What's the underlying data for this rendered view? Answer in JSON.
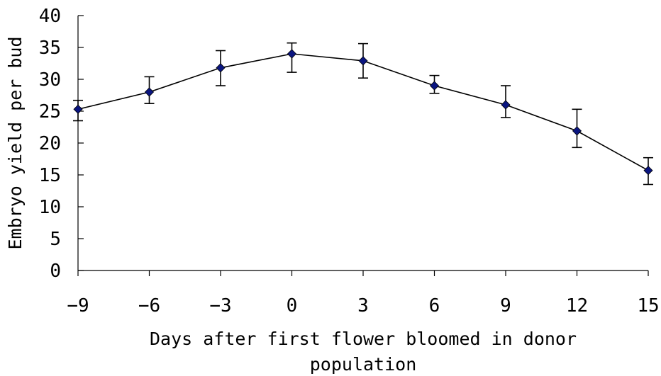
{
  "chart_data": {
    "type": "line",
    "xlabel_lines": [
      "Days after first flower bloomed in donor",
      "population"
    ],
    "ylabel": "Embryo yield per bud",
    "x": [
      -9,
      -6,
      -3,
      0,
      3,
      6,
      9,
      12,
      15
    ],
    "x_tick_labels": [
      "−9",
      "−6",
      "−3",
      "0",
      "3",
      "6",
      "9",
      "12",
      "15"
    ],
    "ylim": [
      0,
      40
    ],
    "y_ticks": [
      0,
      5,
      10,
      15,
      20,
      25,
      30,
      35,
      40
    ],
    "series": [
      {
        "values": [
          25.3,
          28.0,
          31.8,
          34.0,
          32.9,
          29.0,
          26.0,
          21.9,
          15.7
        ],
        "error_low": [
          23.5,
          26.2,
          29.0,
          31.1,
          30.2,
          27.8,
          24.0,
          19.3,
          13.5
        ],
        "error_high": [
          26.7,
          30.4,
          34.5,
          35.7,
          35.6,
          30.6,
          29.0,
          25.3,
          17.7
        ],
        "marker": "diamond",
        "marker_color": "#0a1580",
        "line_color": "#000000"
      }
    ],
    "grid": false,
    "legend": "none"
  }
}
